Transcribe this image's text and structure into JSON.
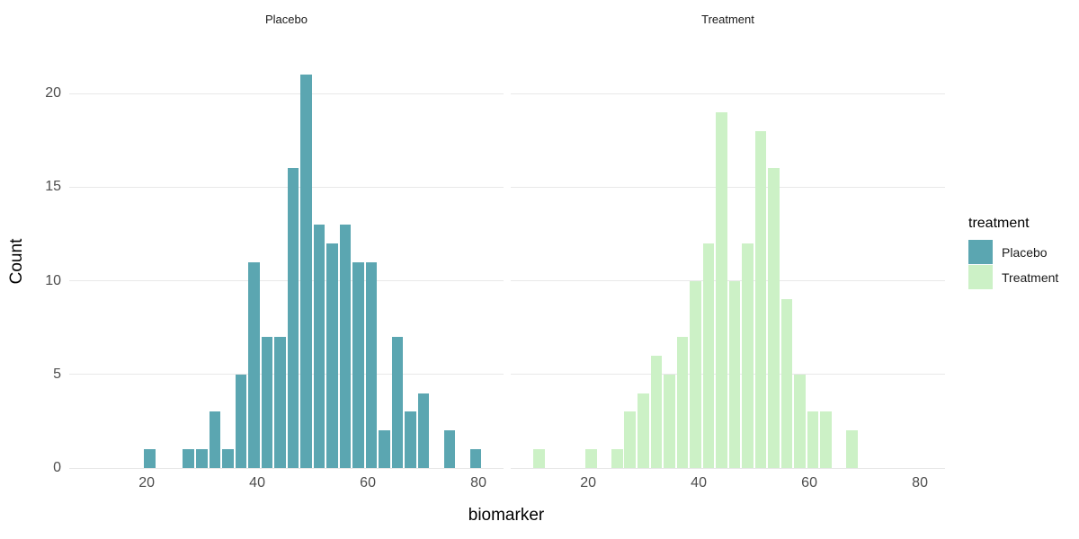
{
  "figure": {
    "background": "#ffffff",
    "legend": {
      "title": "treatment",
      "position": "right",
      "entries": [
        {
          "label": "Placebo",
          "color": "#5BA6B1"
        },
        {
          "label": "Treatment",
          "color": "#CCF1C6"
        }
      ]
    }
  },
  "chart_data": {
    "type": "bar",
    "variant": "faceted-histogram",
    "title": "",
    "xlabel": "biomarker",
    "ylabel": "Count",
    "x_ticks": [
      20,
      40,
      60,
      80
    ],
    "y_ticks": [
      0,
      5,
      10,
      15,
      20
    ],
    "xlim": [
      6.0,
      84.54
    ],
    "ylim": [
      0,
      22.05
    ],
    "bin_width": 2.36,
    "grid": "horizontal-major-only",
    "legend_position": "right",
    "colors": {
      "placebo_fill": "#5BA6B1",
      "treatment_fill": "#CCF1C6",
      "gridline": "#e8e8e8",
      "tick_text": "#4d4d4d",
      "strip_text": "#1a1a1a",
      "axis_title_text": "#000000"
    },
    "facets": [
      {
        "label": "Placebo",
        "color": "#5BA6B1",
        "bins": [
          [
            19.34,
            1
          ],
          [
            26.42,
            1
          ],
          [
            28.78,
            1
          ],
          [
            31.14,
            3
          ],
          [
            33.5,
            1
          ],
          [
            35.86,
            5
          ],
          [
            38.22,
            11
          ],
          [
            40.58,
            7
          ],
          [
            42.94,
            7
          ],
          [
            45.3,
            16
          ],
          [
            47.66,
            21
          ],
          [
            50.02,
            13
          ],
          [
            52.38,
            12
          ],
          [
            54.74,
            13
          ],
          [
            57.1,
            11
          ],
          [
            59.46,
            11
          ],
          [
            61.82,
            2
          ],
          [
            64.18,
            7
          ],
          [
            66.54,
            3
          ],
          [
            68.9,
            4
          ],
          [
            73.62,
            2
          ],
          [
            78.34,
            1
          ]
        ]
      },
      {
        "label": "Treatment",
        "color": "#CCF1C6",
        "bins": [
          [
            9.9,
            1
          ],
          [
            19.34,
            1
          ],
          [
            24.06,
            1
          ],
          [
            26.42,
            3
          ],
          [
            28.78,
            4
          ],
          [
            31.14,
            6
          ],
          [
            33.5,
            5
          ],
          [
            35.86,
            7
          ],
          [
            38.22,
            10
          ],
          [
            40.58,
            12
          ],
          [
            42.94,
            19
          ],
          [
            45.3,
            10
          ],
          [
            47.66,
            12
          ],
          [
            50.02,
            18
          ],
          [
            52.38,
            16
          ],
          [
            54.74,
            9
          ],
          [
            57.1,
            5
          ],
          [
            59.46,
            3
          ],
          [
            61.82,
            3
          ],
          [
            66.54,
            2
          ]
        ]
      }
    ]
  }
}
